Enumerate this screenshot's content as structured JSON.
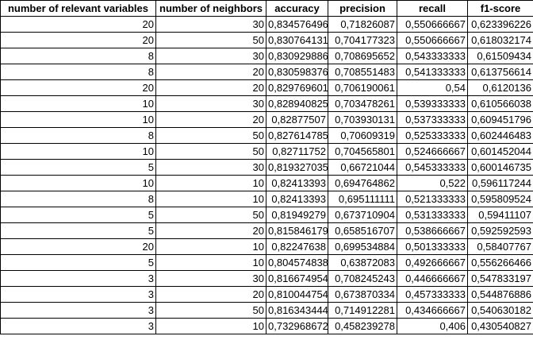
{
  "table": {
    "headers": [
      "number of relevant variables",
      "number of neighbors",
      "accuracy",
      "precision",
      "recall",
      "f1-score"
    ],
    "rows": [
      [
        "20",
        "30",
        "0,834576496",
        "0,71826087",
        "0,550666667",
        "0,623396226"
      ],
      [
        "20",
        "50",
        "0,830764131",
        "0,704177323",
        "0,550666667",
        "0,618032174"
      ],
      [
        "8",
        "30",
        "0,830929886",
        "0,708695652",
        "0,543333333",
        "0,61509434"
      ],
      [
        "8",
        "20",
        "0,830598376",
        "0,708551483",
        "0,541333333",
        "0,613756614"
      ],
      [
        "20",
        "20",
        "0,829769601",
        "0,706190061",
        "0,54",
        "0,6120136"
      ],
      [
        "10",
        "30",
        "0,828940825",
        "0,703478261",
        "0,539333333",
        "0,610566038"
      ],
      [
        "10",
        "20",
        "0,82877507",
        "0,703930131",
        "0,537333333",
        "0,609451796"
      ],
      [
        "8",
        "50",
        "0,827614785",
        "0,70609319",
        "0,525333333",
        "0,602446483"
      ],
      [
        "10",
        "50",
        "0,82711752",
        "0,704565801",
        "0,524666667",
        "0,601452044"
      ],
      [
        "5",
        "30",
        "0,819327035",
        "0,66721044",
        "0,545333333",
        "0,600146735"
      ],
      [
        "10",
        "10",
        "0,82413393",
        "0,694764862",
        "0,522",
        "0,596117244"
      ],
      [
        "8",
        "10",
        "0,82413393",
        "0,695111111",
        "0,521333333",
        "0,595809524"
      ],
      [
        "5",
        "50",
        "0,81949279",
        "0,673710904",
        "0,531333333",
        "0,59411107"
      ],
      [
        "5",
        "20",
        "0,815846179",
        "0,658516707",
        "0,538666667",
        "0,592592593"
      ],
      [
        "20",
        "10",
        "0,82247638",
        "0,699534884",
        "0,501333333",
        "0,58407767"
      ],
      [
        "5",
        "10",
        "0,804574838",
        "0,63872083",
        "0,492666667",
        "0,556266466"
      ],
      [
        "3",
        "30",
        "0,816674954",
        "0,708245243",
        "0,446666667",
        "0,547833197"
      ],
      [
        "3",
        "20",
        "0,810044754",
        "0,673870334",
        "0,457333333",
        "0,544876886"
      ],
      [
        "3",
        "50",
        "0,816343444",
        "0,714912281",
        "0,434666667",
        "0,540630182"
      ],
      [
        "3",
        "10",
        "0,732968672",
        "0,458239278",
        "0,406",
        "0,430540827"
      ]
    ]
  }
}
